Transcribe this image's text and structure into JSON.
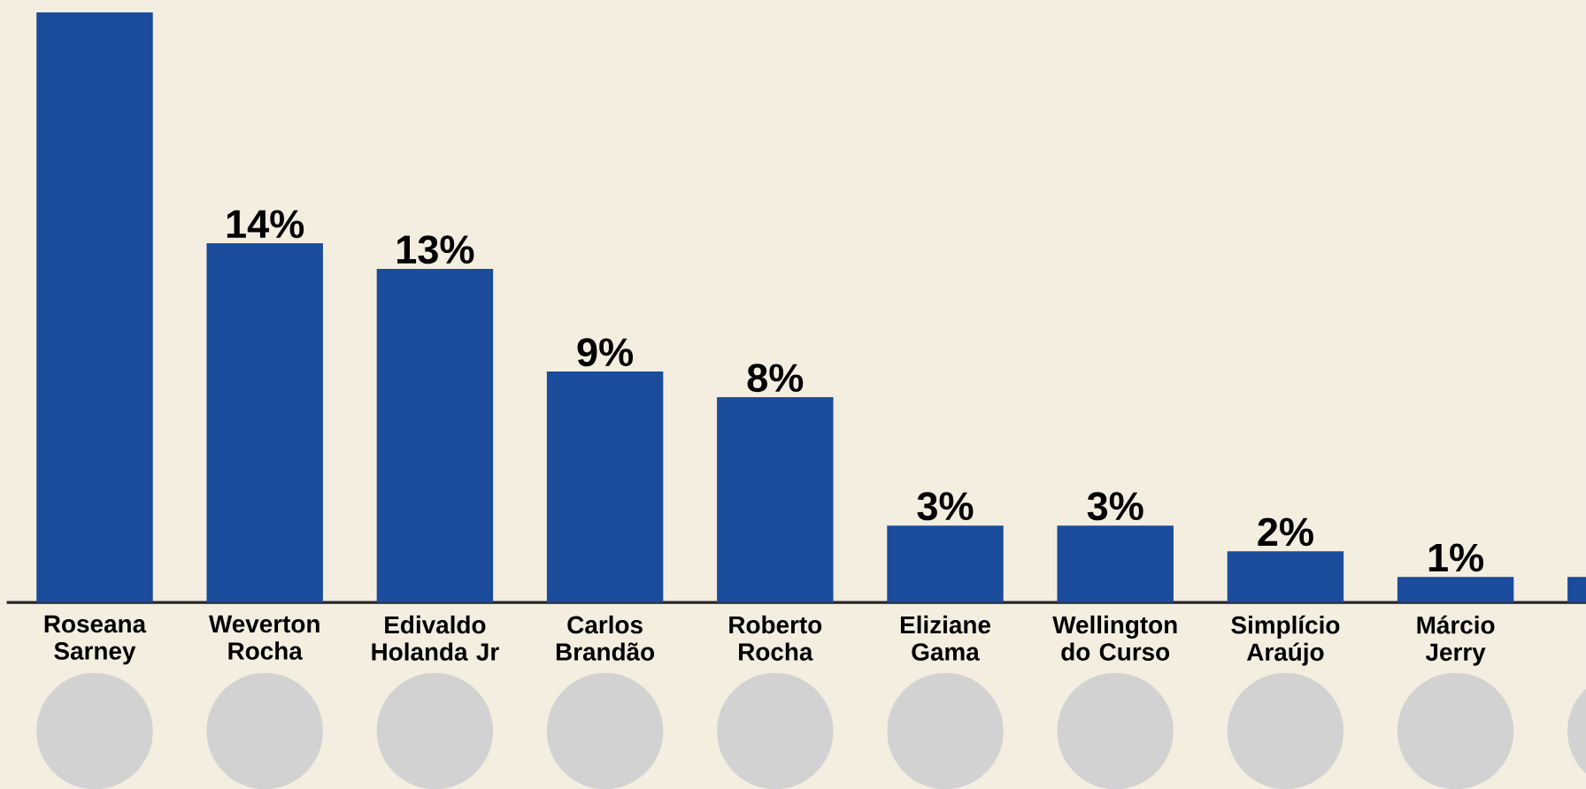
{
  "chart_data": {
    "type": "bar",
    "categories": [
      "Roseana Sarney",
      "Weverton Rocha",
      "Edivaldo Holanda Jr",
      "Carlos Brandão",
      "Roberto Rocha",
      "Eliziane Gama",
      "Wellington do Curso",
      "Simplício Araújo",
      "Márcio Jerry",
      null
    ],
    "values": [
      23,
      14,
      13,
      9,
      8,
      3,
      3,
      2,
      1,
      1
    ],
    "value_labels": [
      null,
      "14%",
      "13%",
      "9%",
      "8%",
      "3%",
      "3%",
      "2%",
      "1%",
      null
    ],
    "color": "#1b4c9c"
  }
}
